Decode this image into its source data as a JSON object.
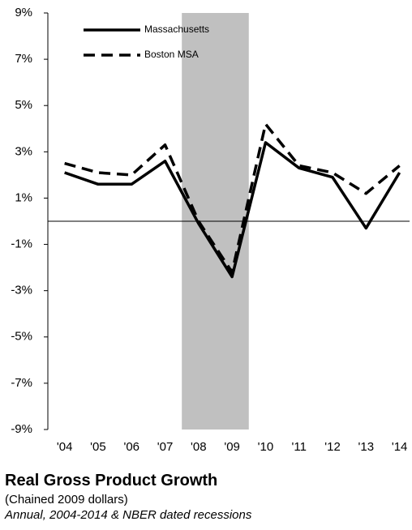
{
  "chart_data": {
    "type": "line",
    "title": "Real Gross Product Growth",
    "subtitle": "(Chained 2009 dollars)",
    "note": "Annual, 2004-2014 & NBER dated recessions",
    "x": [
      2004,
      2005,
      2006,
      2007,
      2008,
      2009,
      2010,
      2011,
      2012,
      2013,
      2014
    ],
    "xlim": [
      2003.5,
      2014.3
    ],
    "xticks": [
      {
        "value": 2004,
        "label": "'04"
      },
      {
        "value": 2005,
        "label": "'05"
      },
      {
        "value": 2006,
        "label": "'06"
      },
      {
        "value": 2007,
        "label": "'07"
      },
      {
        "value": 2008,
        "label": "'08"
      },
      {
        "value": 2009,
        "label": "'09"
      },
      {
        "value": 2010,
        "label": "'10"
      },
      {
        "value": 2011,
        "label": "'11"
      },
      {
        "value": 2012,
        "label": "'12"
      },
      {
        "value": 2013,
        "label": "'13"
      },
      {
        "value": 2014,
        "label": "'14"
      }
    ],
    "ylim": [
      -9,
      9
    ],
    "yticks": [
      {
        "value": -9,
        "label": "-9%"
      },
      {
        "value": -7,
        "label": "-7%"
      },
      {
        "value": -5,
        "label": "-5%"
      },
      {
        "value": -3,
        "label": "-3%"
      },
      {
        "value": -1,
        "label": "-1%"
      },
      {
        "value": 1,
        "label": "1%"
      },
      {
        "value": 3,
        "label": "3%"
      },
      {
        "value": 5,
        "label": "5%"
      },
      {
        "value": 7,
        "label": "7%"
      },
      {
        "value": 9,
        "label": "9%"
      }
    ],
    "recession": [
      2007.5,
      2009.5
    ],
    "recession_color": "#c0c0c0",
    "legend": "upper left",
    "series": [
      {
        "name": "Massachusetts",
        "color": "#000000",
        "dash": "solid",
        "values": [
          2.1,
          1.6,
          1.6,
          2.6,
          -0.1,
          -2.4,
          3.4,
          2.3,
          1.9,
          -0.3,
          2.1
        ]
      },
      {
        "name": "Boston MSA",
        "color": "#000000",
        "dash": "dashed",
        "values": [
          2.5,
          2.1,
          2.0,
          3.3,
          0.0,
          -2.2,
          4.2,
          2.4,
          2.1,
          1.2,
          2.4
        ]
      }
    ]
  }
}
